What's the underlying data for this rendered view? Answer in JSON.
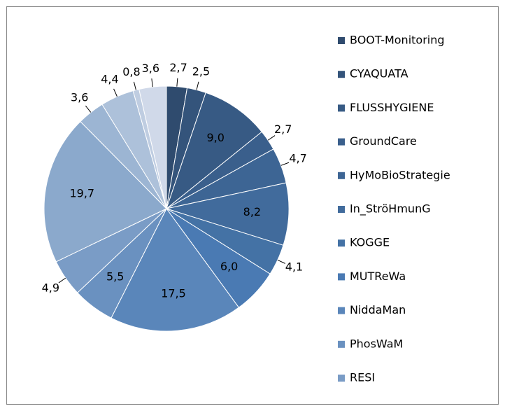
{
  "chart_data": {
    "type": "pie",
    "categories": [
      "BOOT-Monitoring",
      "CYAQUATA",
      "FLUSSHYGIENE",
      "GroundCare",
      "HyMoBioStrategie",
      "In_StröHmunG",
      "KOGGE",
      "MUTReWa",
      "NiddaMan",
      "PhosWaM",
      "RESI",
      null,
      null,
      null,
      null,
      null
    ],
    "values": [
      2.7,
      2.5,
      9.0,
      2.7,
      4.7,
      8.2,
      4.1,
      6.0,
      17.5,
      5.5,
      4.9,
      19.7,
      3.6,
      4.4,
      0.8,
      3.6
    ],
    "value_labels": [
      "2,7",
      "2,5",
      "9,0",
      "2,7",
      "4,7",
      "8,2",
      "4,1",
      "6,0",
      "17,5",
      "5,5",
      "4,9",
      "19,7",
      "3,6",
      "4,4",
      "0,8",
      "3,6"
    ],
    "colors": [
      "#2f4b6e",
      "#34547b",
      "#375a84",
      "#3a5f8c",
      "#3d6594",
      "#416b9c",
      "#4472a5",
      "#4a7ab3",
      "#5a86ba",
      "#6a91c0",
      "#7a9cc6",
      "#8ba9cc",
      "#9cb5d3",
      "#adc1da",
      "#bfcde1",
      "#d0d9e9"
    ]
  }
}
